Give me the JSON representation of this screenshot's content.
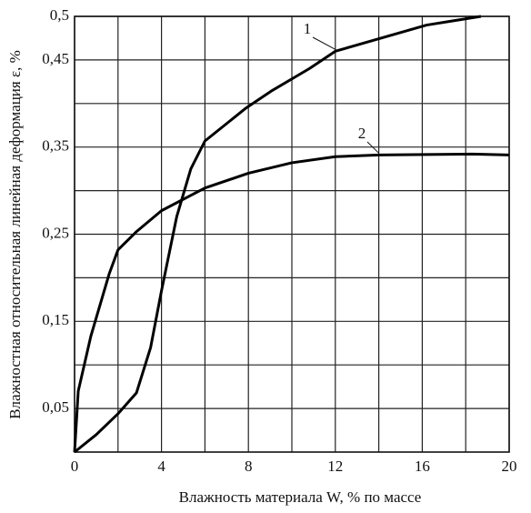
{
  "chart_data": {
    "type": "line",
    "x_label": "Влажность  материала W, % по массе",
    "y_label": "Влажностная относительная линейная деформация ε, %",
    "series": [
      {
        "name": "1",
        "color": "#000000",
        "x": [
          0,
          1,
          2,
          2.85,
          3.5,
          4,
          4.7,
          5.35,
          6,
          7.9,
          9.1,
          10.8,
          12,
          14.1,
          16.2,
          18.7
        ],
        "values": [
          0,
          0.02,
          0.044,
          0.068,
          0.12,
          0.185,
          0.27,
          0.325,
          0.357,
          0.395,
          0.415,
          0.44,
          0.46,
          0.475,
          0.49,
          0.5
        ]
      },
      {
        "name": "2",
        "color": "#000000",
        "x": [
          0,
          0.17,
          0.75,
          1.6,
          2,
          2.85,
          4,
          6,
          8,
          10,
          12,
          14,
          18.3,
          20
        ],
        "values": [
          0,
          0.07,
          0.133,
          0.205,
          0.232,
          0.253,
          0.277,
          0.303,
          0.32,
          0.332,
          0.339,
          0.341,
          0.342,
          0.341
        ]
      }
    ],
    "xlim": [
      0,
      20
    ],
    "ylim": [
      0,
      0.5
    ],
    "xticks": [
      0,
      4,
      8,
      12,
      16,
      20
    ],
    "yticks": [
      {
        "value": 0.05,
        "label": "0,05"
      },
      {
        "value": 0.15,
        "label": "0,15"
      },
      {
        "value": 0.25,
        "label": "0,25"
      },
      {
        "value": 0.35,
        "label": "0,35"
      },
      {
        "value": 0.45,
        "label": "0,45"
      },
      {
        "value": 0.5,
        "label": "0,5"
      }
    ],
    "xgrid": [
      2,
      6,
      10,
      14,
      18
    ],
    "ygrid": [
      0.1,
      0.2,
      0.3,
      0.4
    ],
    "grid": true
  }
}
